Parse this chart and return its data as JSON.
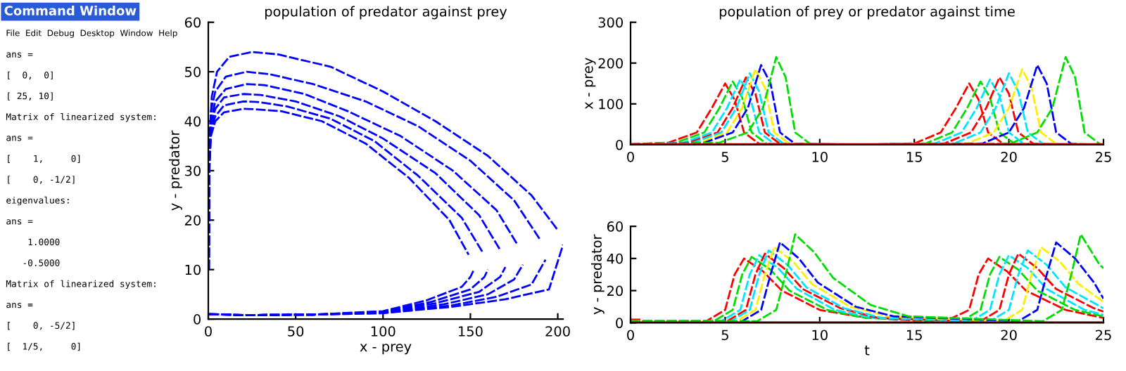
{
  "chart_data": [
    {
      "type": "other",
      "title": "Command Window",
      "annotations": [
        "File  Edit  Debug  Desktop  Window  Help",
        "ans =",
        "[  0,  0]",
        "[ 25, 10]",
        "Matrix of linearized system:",
        "ans =",
        "[    1,     0]",
        "[    0, -1/2]",
        "eigenvalues:",
        "ans =",
        "    1.0000",
        "   -0.5000",
        "Matrix of linearized system:",
        "ans =",
        "[    0, -5/2]",
        "[  1/5,     0]"
      ]
    },
    {
      "type": "line",
      "title": "population of predator against prey",
      "xlabel": "x - prey",
      "ylabel": "y - predator",
      "xlim": [
        0,
        203
      ],
      "ylim": [
        0,
        60
      ],
      "xticks": [
        0,
        50,
        100,
        150,
        200
      ],
      "yticks": [
        0,
        10,
        20,
        30,
        40,
        50,
        60
      ],
      "line_style": "dashed",
      "grid": false,
      "legend": false,
      "series": [
        {
          "color": "#0000ff",
          "x": [
            0.5,
            20,
            60,
            100,
            140,
            170,
            195,
            203
          ],
          "values": [
            1,
            0.8,
            0.9,
            1.2,
            2.5,
            4,
            6,
            15
          ]
        },
        {
          "color": "#0000ff",
          "x": [
            0.3,
            0.5,
            2,
            5,
            12,
            25,
            40,
            70,
            100,
            130,
            160,
            185,
            200
          ],
          "values": [
            10,
            35,
            45,
            50,
            53,
            54,
            53.5,
            51,
            46,
            40,
            33,
            25,
            18
          ]
        },
        {
          "color": "#0000ff",
          "x": [
            0.5,
            20,
            60,
            100,
            140,
            165,
            185,
            193
          ],
          "values": [
            1,
            0.8,
            0.9,
            1.2,
            2.8,
            4.5,
            7,
            12
          ]
        },
        {
          "color": "#0000ff",
          "x": [
            0.3,
            0.5,
            1.5,
            4,
            10,
            22,
            35,
            60,
            90,
            120,
            150,
            175,
            190
          ],
          "values": [
            10,
            33,
            42,
            46,
            49,
            50,
            49.5,
            47.5,
            44,
            39,
            32,
            24,
            16
          ]
        },
        {
          "color": "#0000ff",
          "x": [
            0.5,
            20,
            60,
            100,
            135,
            160,
            175,
            180
          ],
          "values": [
            1,
            0.8,
            0.9,
            1.3,
            3,
            5,
            8,
            11
          ]
        },
        {
          "color": "#0000ff",
          "x": [
            0.3,
            0.5,
            1.5,
            4,
            10,
            22,
            32,
            55,
            80,
            110,
            140,
            165,
            177
          ],
          "values": [
            10,
            32,
            40,
            44,
            46.5,
            47.5,
            47.3,
            45.5,
            42,
            37,
            30,
            22,
            15
          ]
        },
        {
          "color": "#0000ff",
          "x": [
            0.5,
            20,
            60,
            100,
            130,
            155,
            167,
            170
          ],
          "values": [
            1,
            0.8,
            0.9,
            1.4,
            3.2,
            5.5,
            8.5,
            10.5
          ]
        },
        {
          "color": "#0000ff",
          "x": [
            0.3,
            0.5,
            1.5,
            4,
            9,
            20,
            30,
            50,
            75,
            100,
            130,
            155,
            167
          ],
          "values": [
            10,
            31,
            39,
            42.5,
            44.8,
            45.5,
            45.3,
            44,
            41,
            36.5,
            29.5,
            21,
            14
          ]
        },
        {
          "color": "#0000ff",
          "x": [
            0.5,
            20,
            60,
            100,
            128,
            150,
            158,
            160
          ],
          "values": [
            1,
            0.8,
            0.9,
            1.5,
            3.5,
            6,
            8.5,
            10
          ]
        },
        {
          "color": "#0000ff",
          "x": [
            0.3,
            0.5,
            1.5,
            4,
            9,
            20,
            28,
            45,
            70,
            95,
            120,
            145,
            157
          ],
          "values": [
            10,
            30,
            38,
            41,
            43.2,
            44,
            43.9,
            43,
            40.5,
            36,
            29,
            20.5,
            13.5
          ]
        },
        {
          "color": "#0000ff",
          "x": [
            0.5,
            20,
            60,
            100,
            125,
            145,
            150,
            152
          ],
          "values": [
            1,
            0.8,
            0.9,
            1.6,
            3.8,
            6.5,
            8.5,
            10
          ]
        },
        {
          "color": "#0000ff",
          "x": [
            0.3,
            0.5,
            1.5,
            4,
            9,
            20,
            27,
            42,
            65,
            90,
            115,
            138,
            149
          ],
          "values": [
            10,
            29,
            37,
            40,
            41.8,
            42.5,
            42.4,
            42,
            40,
            35.5,
            28.5,
            20,
            13
          ]
        }
      ]
    },
    {
      "type": "line",
      "title": "population of prey or predator against time",
      "ylabel": "x - prey",
      "xlim": [
        0,
        25
      ],
      "ylim": [
        0,
        300
      ],
      "xticks": [
        0,
        5,
        10,
        15,
        20,
        25
      ],
      "yticks": [
        0,
        100,
        200,
        300
      ],
      "line_style": "dashed",
      "grid": false,
      "legend": false,
      "series": [
        {
          "color": "#ff0000",
          "x": [
            0,
            2,
            3.5,
            4.3,
            5.0,
            5.5,
            6.0,
            6.8,
            12,
            15,
            16.4,
            17.2,
            17.9,
            18.4,
            18.9,
            19.7,
            25
          ],
          "values": [
            1,
            5,
            30,
            90,
            150,
            110,
            30,
            2,
            0,
            3,
            30,
            90,
            150,
            110,
            30,
            2,
            0
          ]
        },
        {
          "color": "#00dd00",
          "x": [
            0,
            2.4,
            3.9,
            4.7,
            5.4,
            5.9,
            6.4,
            7.2,
            12,
            15.6,
            17,
            17.8,
            18.5,
            19,
            19.5,
            20.3,
            25
          ],
          "values": [
            1,
            5,
            30,
            90,
            155,
            115,
            30,
            2,
            0,
            3,
            30,
            90,
            155,
            115,
            30,
            2,
            0
          ]
        },
        {
          "color": "#00e5ff",
          "x": [
            0,
            2.8,
            4.3,
            5.1,
            5.8,
            6.3,
            6.8,
            7.6,
            12,
            16.1,
            17.5,
            18.3,
            19.0,
            19.5,
            20.0,
            20.8,
            25
          ],
          "values": [
            1,
            5,
            30,
            90,
            160,
            120,
            30,
            2,
            0,
            3,
            30,
            90,
            160,
            120,
            30,
            2,
            0
          ]
        },
        {
          "color": "#ff0000",
          "x": [
            0,
            3.1,
            4.6,
            5.4,
            6.1,
            6.6,
            7.1,
            7.9,
            12,
            16.6,
            18,
            18.8,
            19.5,
            20,
            20.5,
            21.3,
            25
          ],
          "values": [
            1,
            5,
            30,
            90,
            165,
            125,
            30,
            2,
            0,
            3,
            30,
            90,
            165,
            125,
            30,
            2,
            0
          ]
        },
        {
          "color": "#00e5ff",
          "x": [
            0,
            3.3,
            4.8,
            5.6,
            6.3,
            6.8,
            7.3,
            8.1,
            12,
            17.1,
            18.5,
            19.3,
            20.0,
            20.5,
            21,
            21.8,
            25
          ],
          "values": [
            1,
            5,
            30,
            90,
            175,
            130,
            30,
            2,
            0,
            3,
            30,
            90,
            175,
            130,
            30,
            2,
            0
          ]
        },
        {
          "color": "#ffee00",
          "x": [
            0,
            3.6,
            5.1,
            5.9,
            6.6,
            7.1,
            7.6,
            8.4,
            13,
            17.8,
            19.2,
            20,
            20.7,
            21.2,
            21.7,
            22.5,
            25
          ],
          "values": [
            1,
            5,
            30,
            90,
            185,
            140,
            30,
            2,
            0,
            3,
            30,
            90,
            185,
            140,
            30,
            2,
            0
          ]
        },
        {
          "color": "#0000ff",
          "x": [
            0,
            3.9,
            5.4,
            6.2,
            6.9,
            7.4,
            7.9,
            8.7,
            13,
            18.6,
            20,
            20.8,
            21.5,
            22,
            22.5,
            23.3,
            25
          ],
          "values": [
            1,
            5,
            30,
            90,
            195,
            150,
            30,
            2,
            0,
            3,
            30,
            90,
            195,
            150,
            30,
            2,
            0
          ]
        },
        {
          "color": "#00dd00",
          "x": [
            0,
            4.7,
            6.2,
            7.0,
            7.7,
            8.2,
            8.7,
            9.5,
            14,
            20.1,
            21.5,
            22.3,
            23.0,
            23.5,
            24,
            24.8,
            25
          ],
          "values": [
            1,
            5,
            30,
            90,
            215,
            165,
            30,
            2,
            0,
            3,
            30,
            90,
            215,
            165,
            30,
            2,
            0
          ]
        },
        {
          "color": "#ff0000",
          "line_style": "solid",
          "x": [
            0,
            25
          ],
          "values": [
            0,
            0
          ]
        }
      ]
    },
    {
      "type": "line",
      "xlabel": "t",
      "ylabel": "y - predator",
      "xlim": [
        0,
        25
      ],
      "ylim": [
        0,
        60
      ],
      "xticks": [
        0,
        5,
        10,
        15,
        20,
        25
      ],
      "yticks": [
        0,
        20,
        40,
        60
      ],
      "line_style": "dashed",
      "grid": false,
      "legend": false,
      "series": [
        {
          "color": "#ff0000",
          "x": [
            0,
            0.5,
            0.6,
            4,
            5,
            5.5,
            6.0,
            7,
            8,
            10,
            12,
            14,
            16,
            17,
            17.9,
            18.4,
            18.9,
            19.9,
            20.9,
            23,
            25
          ],
          "values": [
            2,
            2,
            1,
            1,
            8,
            30,
            40,
            32,
            20,
            8,
            4,
            2,
            1,
            3,
            8,
            30,
            40,
            32,
            20,
            8,
            3
          ]
        },
        {
          "color": "#00dd00",
          "x": [
            0,
            4.4,
            5.4,
            5.9,
            6.4,
            7.4,
            8.4,
            10.4,
            12.4,
            17.5,
            18.5,
            19,
            19.5,
            20.5,
            21.5,
            23.5,
            25
          ],
          "values": [
            1,
            1,
            8,
            30,
            41,
            33,
            20,
            8,
            3,
            1,
            8,
            30,
            41,
            33,
            20,
            8,
            4
          ]
        },
        {
          "color": "#00e5ff",
          "x": [
            0,
            4.8,
            5.8,
            6.3,
            6.8,
            7.8,
            8.8,
            10.8,
            12.8,
            18,
            19,
            19.5,
            20,
            21,
            22,
            24,
            25
          ],
          "values": [
            1,
            1,
            8,
            30,
            42,
            34,
            21,
            8,
            3,
            1,
            8,
            30,
            42,
            34,
            21,
            8,
            5
          ]
        },
        {
          "color": "#ff0000",
          "x": [
            0,
            5.1,
            6.1,
            6.6,
            7.1,
            8.1,
            9.1,
            11.1,
            13.1,
            18.5,
            19.5,
            20,
            20.5,
            21.5,
            22.5,
            24.5,
            25
          ],
          "values": [
            1,
            1,
            8,
            30,
            43,
            34,
            21,
            9,
            3,
            1,
            8,
            30,
            43,
            34,
            21,
            9,
            7
          ]
        },
        {
          "color": "#00e5ff",
          "x": [
            0,
            5.3,
            6.3,
            6.8,
            7.3,
            8.3,
            9.3,
            11.3,
            13.3,
            19,
            20,
            20.5,
            21,
            22,
            23,
            25
          ],
          "values": [
            1,
            1,
            8,
            30,
            45,
            36,
            22,
            9,
            3,
            1,
            8,
            30,
            45,
            36,
            22,
            9
          ]
        },
        {
          "color": "#ffee00",
          "x": [
            0,
            5.6,
            6.6,
            7.1,
            7.6,
            8.6,
            9.6,
            11.6,
            13.6,
            19.7,
            20.7,
            21.2,
            21.7,
            22.7,
            23.7,
            25
          ],
          "values": [
            1,
            1,
            8,
            30,
            47,
            38,
            24,
            10,
            4,
            1,
            8,
            30,
            47,
            38,
            24,
            13
          ]
        },
        {
          "color": "#0000ff",
          "x": [
            0,
            5.9,
            6.9,
            7.4,
            7.9,
            8.9,
            9.9,
            11.9,
            13.9,
            20.5,
            21.5,
            22,
            22.5,
            23.5,
            24.5,
            25
          ],
          "values": [
            1,
            1,
            8,
            30,
            50,
            40,
            25,
            10,
            4,
            1,
            8,
            30,
            50,
            40,
            25,
            15
          ]
        },
        {
          "color": "#00dd00",
          "x": [
            0,
            6.7,
            7.7,
            8.2,
            8.7,
            9.7,
            10.7,
            12.7,
            14.7,
            21.8,
            22.8,
            23.3,
            23.8,
            24.8,
            25
          ],
          "values": [
            1,
            1,
            8,
            30,
            55,
            44,
            28,
            11,
            4,
            1,
            8,
            30,
            55,
            36,
            34
          ]
        },
        {
          "color": "#ff0000",
          "line_style": "solid",
          "x": [
            0,
            25
          ],
          "values": [
            0,
            0
          ]
        }
      ]
    }
  ]
}
